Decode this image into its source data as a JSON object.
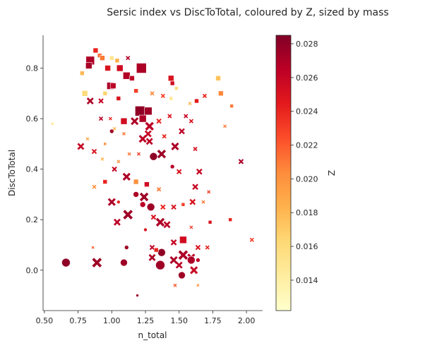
{
  "chart_data": {
    "type": "scatter",
    "title": "Sersic index vs DiscToTotal, coloured by Z, sized by mass",
    "xlabel": "n_total",
    "ylabel": "DiscToTotal",
    "xlim": [
      0.49,
      2.12
    ],
    "ylim": [
      -0.16,
      0.93
    ],
    "xticks": [
      "0.50",
      "0.75",
      "1.00",
      "1.25",
      "1.50",
      "1.75",
      "2.00"
    ],
    "yticks": [
      "0.0",
      "0.2",
      "0.4",
      "0.6",
      "0.8"
    ],
    "grid": false,
    "colorbar": {
      "label": "Z",
      "range": [
        0.0122,
        0.0285
      ],
      "ticks": [
        "0.014",
        "0.016",
        "0.018",
        "0.020",
        "0.022",
        "0.024",
        "0.026",
        "0.028"
      ],
      "colormap": [
        "#ffffcc",
        "#ffeda0",
        "#fed976",
        "#feb24c",
        "#fd8d3c",
        "#fc4e2a",
        "#e31a1c",
        "#bd0026",
        "#800026"
      ]
    },
    "marker_types": [
      "square",
      "x",
      "circle"
    ],
    "points": [
      {
        "x": 0.84,
        "y": 0.83,
        "z": 0.027,
        "s": 12,
        "m": "square"
      },
      {
        "x": 0.83,
        "y": 0.81,
        "z": 0.0272,
        "s": 9,
        "m": "square"
      },
      {
        "x": 0.88,
        "y": 0.87,
        "z": 0.024,
        "s": 7,
        "m": "square"
      },
      {
        "x": 0.91,
        "y": 0.85,
        "z": 0.0215,
        "s": 6,
        "m": "square"
      },
      {
        "x": 0.93,
        "y": 0.84,
        "z": 0.021,
        "s": 7,
        "m": "square"
      },
      {
        "x": 1.0,
        "y": 0.84,
        "z": 0.015,
        "s": 6,
        "m": "square"
      },
      {
        "x": 1.04,
        "y": 0.83,
        "z": 0.0185,
        "s": 6,
        "m": "square"
      },
      {
        "x": 1.12,
        "y": 0.84,
        "z": 0.0268,
        "s": 5,
        "m": "x"
      },
      {
        "x": 1.22,
        "y": 0.8,
        "z": 0.027,
        "s": 14,
        "m": "square"
      },
      {
        "x": 1.06,
        "y": 0.8,
        "z": 0.0255,
        "s": 9,
        "m": "square"
      },
      {
        "x": 0.97,
        "y": 0.8,
        "z": 0.025,
        "s": 8,
        "m": "square"
      },
      {
        "x": 0.78,
        "y": 0.78,
        "z": 0.018,
        "s": 6,
        "m": "square"
      },
      {
        "x": 1.11,
        "y": 0.77,
        "z": 0.0268,
        "s": 10,
        "m": "square"
      },
      {
        "x": 1.15,
        "y": 0.76,
        "z": 0.0265,
        "s": 7,
        "m": "square"
      },
      {
        "x": 1.44,
        "y": 0.76,
        "z": 0.025,
        "s": 8,
        "m": "square"
      },
      {
        "x": 1.79,
        "y": 0.76,
        "z": 0.0175,
        "s": 7,
        "m": "square"
      },
      {
        "x": 1.45,
        "y": 0.74,
        "z": 0.0255,
        "s": 6,
        "m": "square"
      },
      {
        "x": 0.99,
        "y": 0.73,
        "z": 0.027,
        "s": 10,
        "m": "square"
      },
      {
        "x": 1.01,
        "y": 0.73,
        "z": 0.0265,
        "s": 8,
        "m": "square"
      },
      {
        "x": 1.18,
        "y": 0.71,
        "z": 0.023,
        "s": 6,
        "m": "square"
      },
      {
        "x": 1.48,
        "y": 0.72,
        "z": 0.016,
        "s": 5,
        "m": "square"
      },
      {
        "x": 1.81,
        "y": 0.7,
        "z": 0.0205,
        "s": 7,
        "m": "square"
      },
      {
        "x": 0.8,
        "y": 0.7,
        "z": 0.016,
        "s": 8,
        "m": "square"
      },
      {
        "x": 0.95,
        "y": 0.7,
        "z": 0.0165,
        "s": 6,
        "m": "square"
      },
      {
        "x": 1.3,
        "y": 0.7,
        "z": 0.0205,
        "s": 5,
        "m": "x"
      },
      {
        "x": 1.38,
        "y": 0.69,
        "z": 0.023,
        "s": 5,
        "m": "x"
      },
      {
        "x": 1.05,
        "y": 0.68,
        "z": 0.025,
        "s": 6,
        "m": "square"
      },
      {
        "x": 1.44,
        "y": 0.68,
        "z": 0.015,
        "s": 5,
        "m": "square"
      },
      {
        "x": 0.84,
        "y": 0.67,
        "z": 0.027,
        "s": 8,
        "m": "x"
      },
      {
        "x": 0.92,
        "y": 0.67,
        "z": 0.026,
        "s": 6,
        "m": "x"
      },
      {
        "x": 1.69,
        "y": 0.69,
        "z": 0.024,
        "s": 5,
        "m": "x"
      },
      {
        "x": 1.63,
        "y": 0.67,
        "z": 0.0245,
        "s": 6,
        "m": "square"
      },
      {
        "x": 1.89,
        "y": 0.65,
        "z": 0.021,
        "s": 5,
        "m": "square"
      },
      {
        "x": 1.58,
        "y": 0.66,
        "z": 0.018,
        "s": 4,
        "m": "x"
      },
      {
        "x": 1.21,
        "y": 0.63,
        "z": 0.028,
        "s": 14,
        "m": "square"
      },
      {
        "x": 1.27,
        "y": 0.63,
        "z": 0.0275,
        "s": 11,
        "m": "square"
      },
      {
        "x": 1.23,
        "y": 0.6,
        "z": 0.027,
        "s": 10,
        "m": "square"
      },
      {
        "x": 1.09,
        "y": 0.59,
        "z": 0.0255,
        "s": 9,
        "m": "square"
      },
      {
        "x": 1.17,
        "y": 0.59,
        "z": 0.027,
        "s": 9,
        "m": "x"
      },
      {
        "x": 1.28,
        "y": 0.57,
        "z": 0.0265,
        "s": 10,
        "m": "x"
      },
      {
        "x": 1.35,
        "y": 0.59,
        "z": 0.024,
        "s": 6,
        "m": "x"
      },
      {
        "x": 1.43,
        "y": 0.61,
        "z": 0.025,
        "s": 5,
        "m": "x"
      },
      {
        "x": 1.55,
        "y": 0.61,
        "z": 0.026,
        "s": 5,
        "m": "x"
      },
      {
        "x": 1.59,
        "y": 0.59,
        "z": 0.025,
        "s": 5,
        "m": "x"
      },
      {
        "x": 0.92,
        "y": 0.6,
        "z": 0.0265,
        "s": 5,
        "m": "x"
      },
      {
        "x": 0.99,
        "y": 0.6,
        "z": 0.024,
        "s": 4,
        "m": "x"
      },
      {
        "x": 1.0,
        "y": 0.55,
        "z": 0.0275,
        "s": 6,
        "m": "circle"
      },
      {
        "x": 1.02,
        "y": 0.56,
        "z": 0.018,
        "s": 4,
        "m": "x"
      },
      {
        "x": 1.09,
        "y": 0.54,
        "z": 0.021,
        "s": 4,
        "m": "x"
      },
      {
        "x": 1.27,
        "y": 0.54,
        "z": 0.026,
        "s": 8,
        "m": "x"
      },
      {
        "x": 1.52,
        "y": 0.55,
        "z": 0.0265,
        "s": 7,
        "m": "x"
      },
      {
        "x": 1.23,
        "y": 0.52,
        "z": 0.0265,
        "s": 9,
        "m": "x"
      },
      {
        "x": 1.28,
        "y": 0.51,
        "z": 0.0265,
        "s": 8,
        "m": "x"
      },
      {
        "x": 1.39,
        "y": 0.53,
        "z": 0.024,
        "s": 5,
        "m": "x"
      },
      {
        "x": 1.84,
        "y": 0.57,
        "z": 0.021,
        "s": 4,
        "m": "x"
      },
      {
        "x": 0.56,
        "y": 0.58,
        "z": 0.015,
        "s": 3,
        "m": "x"
      },
      {
        "x": 0.82,
        "y": 0.52,
        "z": 0.019,
        "s": 4,
        "m": "x"
      },
      {
        "x": 0.95,
        "y": 0.5,
        "z": 0.02,
        "s": 4,
        "m": "square"
      },
      {
        "x": 0.77,
        "y": 0.49,
        "z": 0.026,
        "s": 8,
        "m": "x"
      },
      {
        "x": 0.87,
        "y": 0.47,
        "z": 0.025,
        "s": 6,
        "m": "x"
      },
      {
        "x": 1.47,
        "y": 0.49,
        "z": 0.027,
        "s": 9,
        "m": "x"
      },
      {
        "x": 1.37,
        "y": 0.46,
        "z": 0.0275,
        "s": 10,
        "m": "x"
      },
      {
        "x": 1.31,
        "y": 0.45,
        "z": 0.028,
        "s": 11,
        "m": "circle"
      },
      {
        "x": 1.2,
        "y": 0.46,
        "z": 0.023,
        "s": 4,
        "m": "x"
      },
      {
        "x": 1.13,
        "y": 0.46,
        "z": 0.021,
        "s": 4,
        "m": "x"
      },
      {
        "x": 1.62,
        "y": 0.48,
        "z": 0.025,
        "s": 5,
        "m": "x"
      },
      {
        "x": 1.05,
        "y": 0.43,
        "z": 0.02,
        "s": 4,
        "m": "x"
      },
      {
        "x": 0.93,
        "y": 0.44,
        "z": 0.018,
        "s": 4,
        "m": "x"
      },
      {
        "x": 1.02,
        "y": 0.4,
        "z": 0.026,
        "s": 6,
        "m": "x"
      },
      {
        "x": 1.11,
        "y": 0.37,
        "z": 0.027,
        "s": 9,
        "m": "x"
      },
      {
        "x": 1.18,
        "y": 0.35,
        "z": 0.02,
        "s": 7,
        "m": "square"
      },
      {
        "x": 1.26,
        "y": 0.34,
        "z": 0.0255,
        "s": 7,
        "m": "square"
      },
      {
        "x": 1.45,
        "y": 0.41,
        "z": 0.0265,
        "s": 6,
        "m": "circle"
      },
      {
        "x": 1.5,
        "y": 0.39,
        "z": 0.025,
        "s": 6,
        "m": "x"
      },
      {
        "x": 1.65,
        "y": 0.39,
        "z": 0.026,
        "s": 7,
        "m": "x"
      },
      {
        "x": 1.96,
        "y": 0.43,
        "z": 0.027,
        "s": 6,
        "m": "x"
      },
      {
        "x": 0.95,
        "y": 0.35,
        "z": 0.024,
        "s": 6,
        "m": "square"
      },
      {
        "x": 0.87,
        "y": 0.33,
        "z": 0.02,
        "s": 5,
        "m": "x"
      },
      {
        "x": 1.18,
        "y": 0.3,
        "z": 0.027,
        "s": 8,
        "m": "circle"
      },
      {
        "x": 1.24,
        "y": 0.29,
        "z": 0.0275,
        "s": 10,
        "m": "x"
      },
      {
        "x": 1.35,
        "y": 0.32,
        "z": 0.021,
        "s": 5,
        "m": "x"
      },
      {
        "x": 1.62,
        "y": 0.33,
        "z": 0.026,
        "s": 7,
        "m": "x"
      },
      {
        "x": 1.72,
        "y": 0.31,
        "z": 0.023,
        "s": 4,
        "m": "x"
      },
      {
        "x": 1.0,
        "y": 0.27,
        "z": 0.027,
        "s": 9,
        "m": "x"
      },
      {
        "x": 1.05,
        "y": 0.27,
        "z": 0.024,
        "s": 5,
        "m": "circle"
      },
      {
        "x": 1.23,
        "y": 0.26,
        "z": 0.0265,
        "s": 8,
        "m": "circle"
      },
      {
        "x": 1.29,
        "y": 0.25,
        "z": 0.0275,
        "s": 11,
        "m": "circle"
      },
      {
        "x": 1.38,
        "y": 0.25,
        "z": 0.024,
        "s": 6,
        "m": "x"
      },
      {
        "x": 1.46,
        "y": 0.25,
        "z": 0.025,
        "s": 6,
        "m": "x"
      },
      {
        "x": 1.53,
        "y": 0.26,
        "z": 0.023,
        "s": 5,
        "m": "square"
      },
      {
        "x": 1.6,
        "y": 0.27,
        "z": 0.025,
        "s": 7,
        "m": "x"
      },
      {
        "x": 1.68,
        "y": 0.27,
        "z": 0.021,
        "s": 4,
        "m": "x"
      },
      {
        "x": 1.12,
        "y": 0.22,
        "z": 0.0275,
        "s": 11,
        "m": "x"
      },
      {
        "x": 1.31,
        "y": 0.21,
        "z": 0.025,
        "s": 6,
        "m": "x"
      },
      {
        "x": 1.36,
        "y": 0.19,
        "z": 0.027,
        "s": 10,
        "m": "x"
      },
      {
        "x": 1.41,
        "y": 0.18,
        "z": 0.0265,
        "s": 8,
        "m": "x"
      },
      {
        "x": 1.04,
        "y": 0.19,
        "z": 0.0265,
        "s": 8,
        "m": "x"
      },
      {
        "x": 1.73,
        "y": 0.19,
        "z": 0.025,
        "s": 5,
        "m": "square"
      },
      {
        "x": 1.88,
        "y": 0.2,
        "z": 0.024,
        "s": 5,
        "m": "square"
      },
      {
        "x": 1.25,
        "y": 0.16,
        "z": 0.025,
        "s": 5,
        "m": "circle"
      },
      {
        "x": 1.59,
        "y": 0.17,
        "z": 0.023,
        "s": 4,
        "m": "x"
      },
      {
        "x": 1.53,
        "y": 0.12,
        "z": 0.0255,
        "s": 10,
        "m": "square"
      },
      {
        "x": 1.46,
        "y": 0.11,
        "z": 0.026,
        "s": 7,
        "m": "x"
      },
      {
        "x": 2.04,
        "y": 0.12,
        "z": 0.023,
        "s": 5,
        "m": "x"
      },
      {
        "x": 1.11,
        "y": 0.09,
        "z": 0.0275,
        "s": 6,
        "m": "circle"
      },
      {
        "x": 1.3,
        "y": 0.09,
        "z": 0.0265,
        "s": 6,
        "m": "x"
      },
      {
        "x": 1.64,
        "y": 0.09,
        "z": 0.025,
        "s": 6,
        "m": "x"
      },
      {
        "x": 1.71,
        "y": 0.09,
        "z": 0.024,
        "s": 5,
        "m": "x"
      },
      {
        "x": 0.86,
        "y": 0.09,
        "z": 0.022,
        "s": 3,
        "m": "x"
      },
      {
        "x": 1.37,
        "y": 0.07,
        "z": 0.028,
        "s": 11,
        "m": "circle"
      },
      {
        "x": 1.33,
        "y": 0.08,
        "z": 0.024,
        "s": 6,
        "m": "square"
      },
      {
        "x": 1.53,
        "y": 0.06,
        "z": 0.027,
        "s": 11,
        "m": "x"
      },
      {
        "x": 1.59,
        "y": 0.05,
        "z": 0.0265,
        "s": 9,
        "m": "x"
      },
      {
        "x": 1.59,
        "y": 0.04,
        "z": 0.027,
        "s": 11,
        "m": "circle"
      },
      {
        "x": 1.64,
        "y": 0.04,
        "z": 0.0265,
        "s": 6,
        "m": "circle"
      },
      {
        "x": 1.3,
        "y": 0.05,
        "z": 0.027,
        "s": 8,
        "m": "x"
      },
      {
        "x": 0.66,
        "y": 0.03,
        "z": 0.028,
        "s": 12,
        "m": "circle"
      },
      {
        "x": 0.89,
        "y": 0.03,
        "z": 0.0275,
        "s": 11,
        "m": "x"
      },
      {
        "x": 1.09,
        "y": 0.03,
        "z": 0.0275,
        "s": 10,
        "m": "circle"
      },
      {
        "x": 1.36,
        "y": 0.02,
        "z": 0.0275,
        "s": 13,
        "m": "circle"
      },
      {
        "x": 1.46,
        "y": 0.04,
        "z": 0.027,
        "s": 9,
        "m": "x"
      },
      {
        "x": 1.5,
        "y": 0.02,
        "z": 0.0265,
        "s": 8,
        "m": "x"
      },
      {
        "x": 1.61,
        "y": 0.0,
        "z": 0.026,
        "s": 9,
        "m": "x"
      },
      {
        "x": 1.52,
        "y": -0.02,
        "z": 0.0275,
        "s": 10,
        "m": "circle"
      },
      {
        "x": 1.47,
        "y": -0.06,
        "z": 0.022,
        "s": 4,
        "m": "x"
      },
      {
        "x": 1.64,
        "y": -0.06,
        "z": 0.02,
        "s": 3,
        "m": "x"
      },
      {
        "x": 1.19,
        "y": -0.1,
        "z": 0.0275,
        "s": 4,
        "m": "circle"
      }
    ]
  }
}
